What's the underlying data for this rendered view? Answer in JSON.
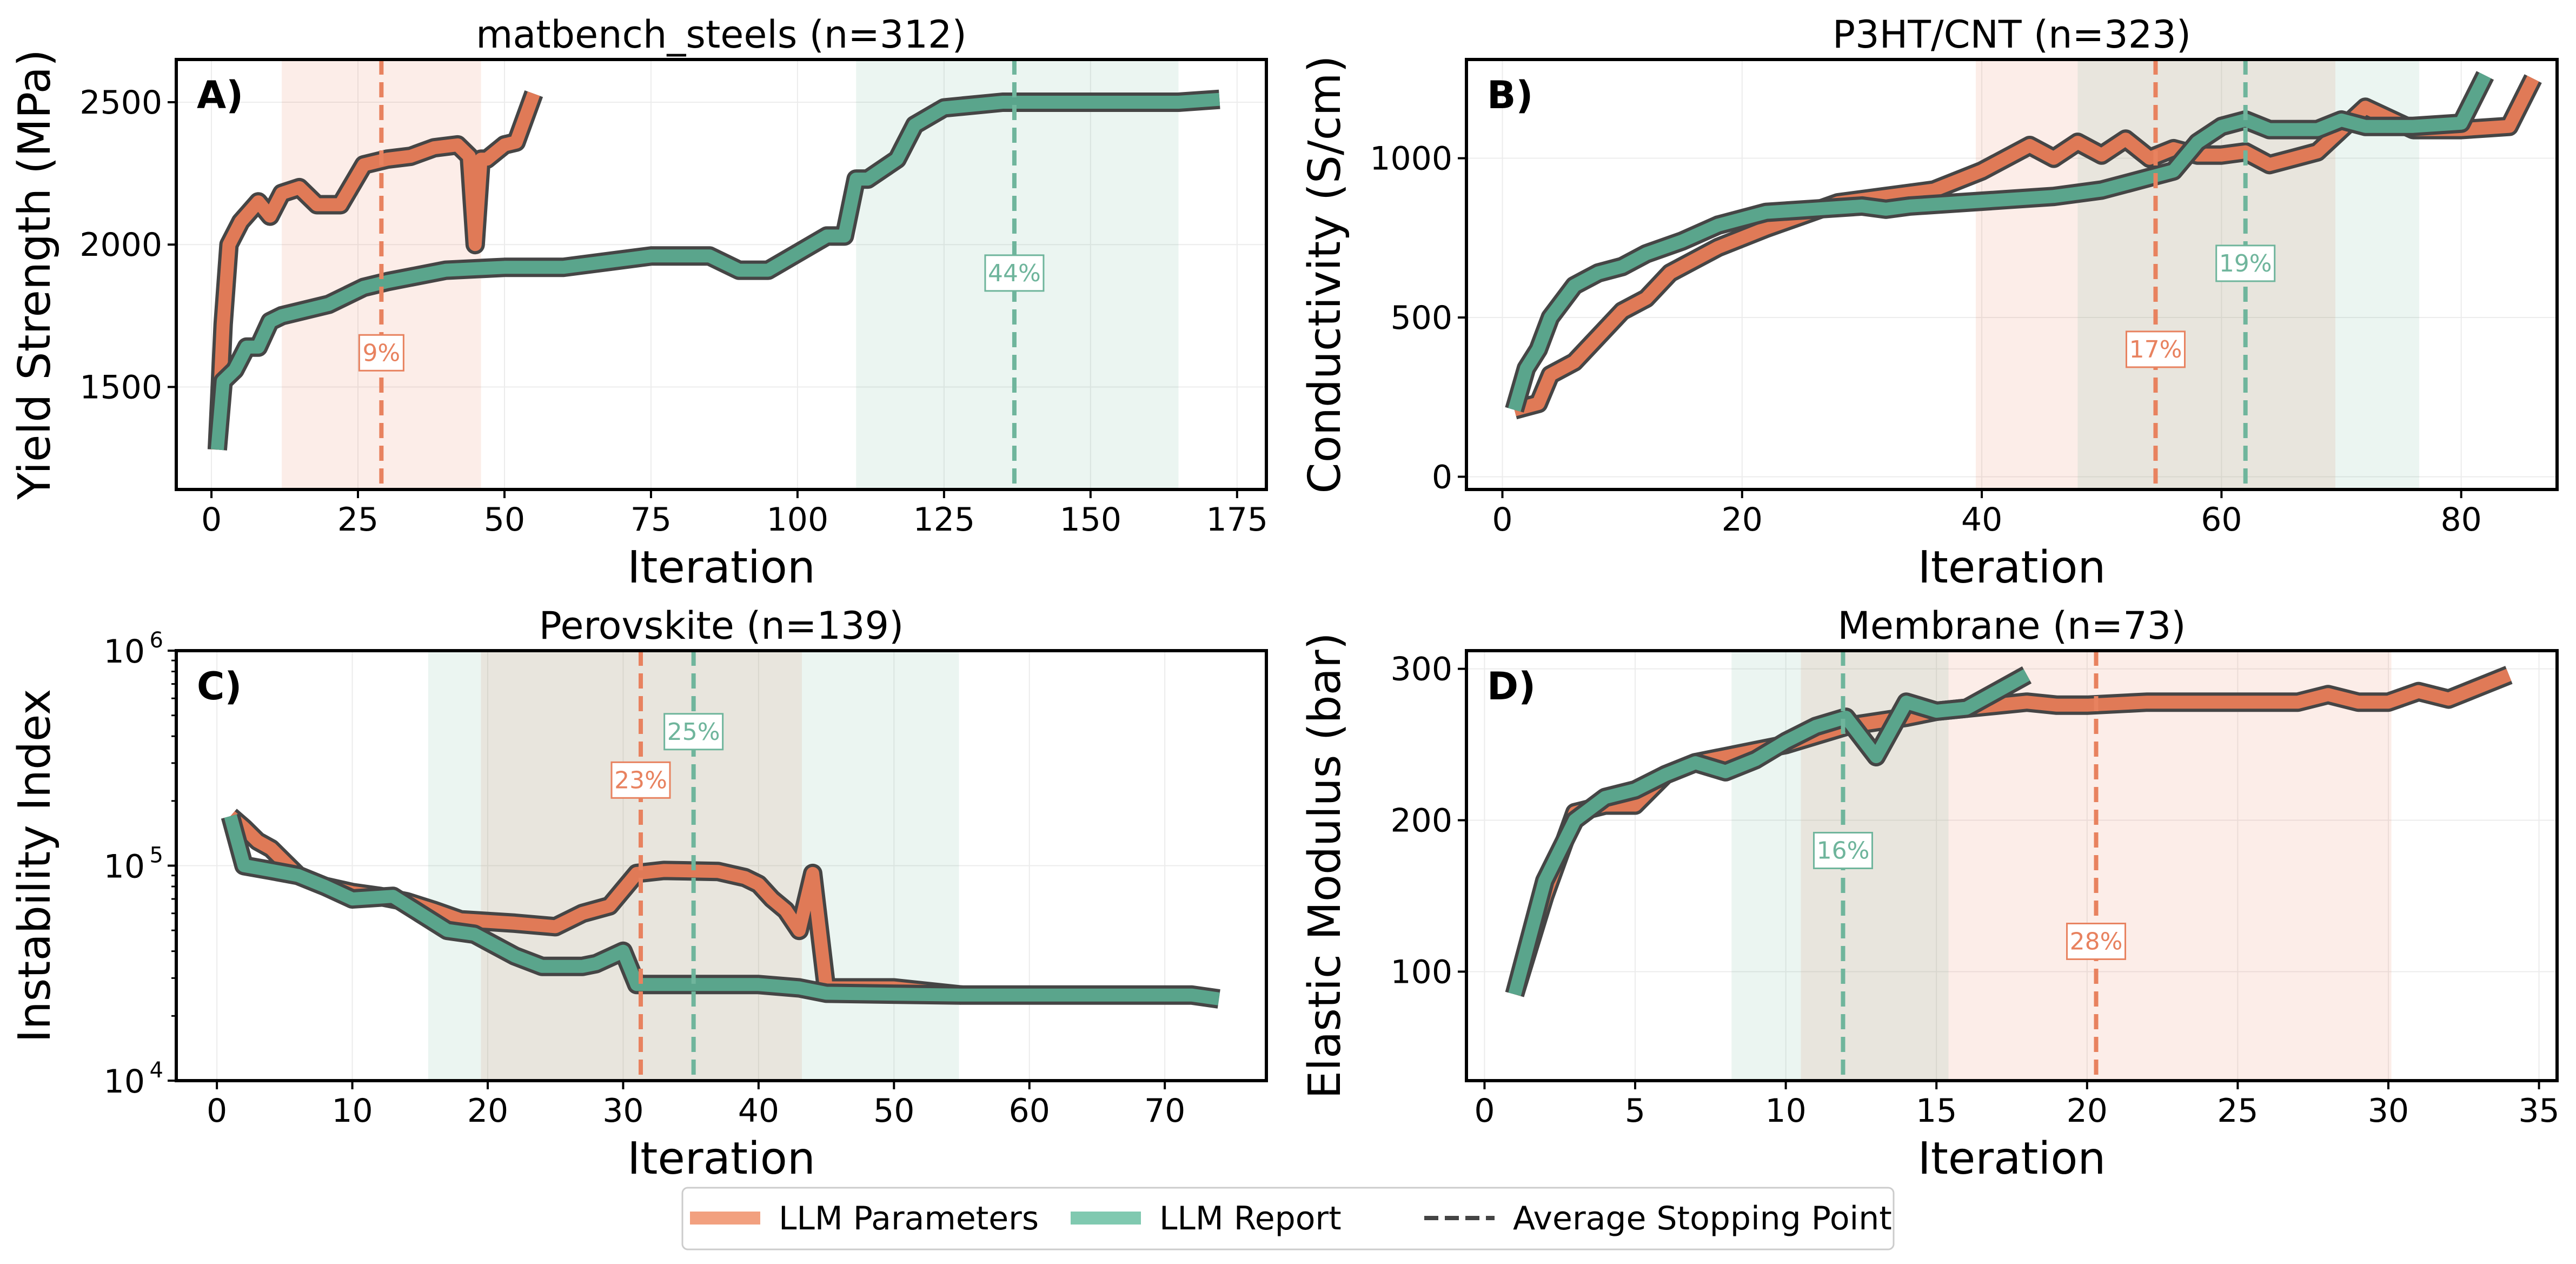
{
  "colors": {
    "llm_parameters": "#e8825f",
    "llm_parameters_dark": "#e07a57",
    "llm_report": "#6fb59c",
    "llm_report_dark": "#5aa58c",
    "outline": "#454545",
    "axis": "#000000",
    "grid": "#ececec"
  },
  "legend": {
    "items": [
      {
        "label": "LLM Parameters",
        "style": "line",
        "color": "#f2a07f"
      },
      {
        "label": "LLM Report",
        "style": "line",
        "color": "#80c9b0"
      },
      {
        "label": "Average Stopping Point",
        "style": "dashed",
        "color": "#444444"
      }
    ]
  },
  "chart_data": [
    {
      "panel": "A)",
      "type": "line",
      "title": "matbench_steels (n=312)",
      "xlabel": "Iteration",
      "ylabel": "Yield Strength (MPa)",
      "yscale": "linear",
      "xlim": [
        -6,
        180
      ],
      "ylim": [
        1140,
        2650
      ],
      "xticks": [
        0,
        25,
        50,
        75,
        100,
        125,
        150,
        175
      ],
      "xtick_labels": [
        "0",
        "25",
        "50",
        "75",
        "100",
        "125",
        "150",
        "175"
      ],
      "yticks": [
        1500,
        2000,
        2500
      ],
      "ytick_labels": [
        "1500",
        "2000",
        "2500"
      ],
      "series": [
        {
          "name": "LLM Parameters",
          "x": [
            1,
            2,
            3,
            5,
            8,
            10,
            12,
            15,
            18,
            22,
            26,
            30,
            34,
            38,
            42,
            44,
            45,
            46,
            47,
            50,
            52,
            55
          ],
          "y": [
            1280,
            1720,
            2000,
            2080,
            2150,
            2100,
            2180,
            2200,
            2140,
            2140,
            2280,
            2300,
            2310,
            2340,
            2350,
            2310,
            2000,
            2300,
            2300,
            2350,
            2360,
            2530
          ]
        },
        {
          "name": "LLM Report",
          "x": [
            1,
            2,
            4,
            6,
            8,
            10,
            12,
            16,
            20,
            26,
            30,
            40,
            50,
            60,
            75,
            85,
            90,
            95,
            100,
            105,
            108,
            110,
            112,
            117,
            120,
            125,
            135,
            150,
            165,
            172
          ],
          "y": [
            1280,
            1520,
            1560,
            1640,
            1640,
            1730,
            1750,
            1770,
            1790,
            1850,
            1870,
            1910,
            1920,
            1920,
            1960,
            1960,
            1910,
            1910,
            1970,
            2030,
            2030,
            2230,
            2230,
            2300,
            2420,
            2480,
            2500,
            2500,
            2500,
            2510
          ]
        }
      ],
      "stopping_points": [
        {
          "name": "LLM Parameters",
          "x": 29,
          "band": [
            12,
            46
          ],
          "percent": "9%",
          "label_y": 1620
        },
        {
          "name": "LLM Report",
          "x": 137,
          "band": [
            110,
            165
          ],
          "percent": "44%",
          "label_y": 1900
        }
      ]
    },
    {
      "panel": "B)",
      "type": "line",
      "title": "P3HT/CNT (n=323)",
      "xlabel": "Iteration",
      "ylabel": "Conductivity (S/cm)",
      "yscale": "linear",
      "xlim": [
        -3,
        88
      ],
      "ylim": [
        -40,
        1310
      ],
      "xticks": [
        0,
        20,
        40,
        60,
        80
      ],
      "xtick_labels": [
        "0",
        "20",
        "40",
        "60",
        "80"
      ],
      "yticks": [
        0,
        500,
        1000
      ],
      "ytick_labels": [
        "0",
        "500",
        "1000"
      ],
      "series": [
        {
          "name": "LLM Parameters",
          "x": [
            1,
            2,
            3,
            4,
            6,
            8,
            10,
            12,
            14,
            16,
            18,
            20,
            22,
            25,
            28,
            32,
            36,
            40,
            44,
            46,
            48,
            50,
            52,
            54,
            56,
            58,
            60,
            62,
            64,
            66,
            68,
            70,
            72,
            76,
            80,
            84,
            86
          ],
          "y": [
            210,
            220,
            230,
            320,
            360,
            440,
            520,
            560,
            640,
            680,
            720,
            750,
            780,
            820,
            860,
            880,
            900,
            960,
            1040,
            1000,
            1050,
            1010,
            1060,
            1000,
            1030,
            1010,
            1010,
            1020,
            980,
            1000,
            1020,
            1090,
            1160,
            1090,
            1090,
            1100,
            1250
          ]
        },
        {
          "name": "LLM Report",
          "x": [
            1,
            2,
            3,
            4,
            6,
            8,
            10,
            12,
            15,
            18,
            22,
            26,
            30,
            32,
            34,
            38,
            42,
            46,
            50,
            54,
            56,
            58,
            60,
            62,
            64,
            66,
            68,
            70,
            72,
            76,
            80,
            82
          ],
          "y": [
            210,
            340,
            400,
            500,
            600,
            640,
            660,
            700,
            740,
            790,
            830,
            840,
            850,
            840,
            850,
            860,
            870,
            880,
            900,
            940,
            960,
            1050,
            1100,
            1120,
            1090,
            1090,
            1090,
            1120,
            1100,
            1100,
            1110,
            1260
          ]
        }
      ],
      "stopping_points": [
        {
          "name": "LLM Parameters",
          "x": 54.5,
          "band": [
            39.5,
            69.5
          ],
          "percent": "17%",
          "label_y": 400
        },
        {
          "name": "LLM Report",
          "x": 62,
          "band": [
            48,
            76.5
          ],
          "percent": "19%",
          "label_y": 670
        }
      ]
    },
    {
      "panel": "C)",
      "type": "line",
      "title": "Perovskite (n=139)",
      "xlabel": "Iteration",
      "ylabel": "Instability Index",
      "yscale": "log",
      "xlim": [
        -3,
        77.5
      ],
      "ylim": [
        10000,
        1000000
      ],
      "xticks": [
        0,
        10,
        20,
        30,
        40,
        50,
        60,
        70
      ],
      "xtick_labels": [
        "0",
        "10",
        "20",
        "30",
        "40",
        "50",
        "60",
        "70"
      ],
      "yticks": [
        10000,
        100000,
        1000000
      ],
      "ytick_labels": [
        "10",
        "10",
        "10"
      ],
      "ytick_exponents": [
        "4",
        "5",
        "6"
      ],
      "series": [
        {
          "name": "LLM Parameters",
          "x": [
            1,
            2,
            3,
            4,
            6,
            8,
            10,
            12,
            14,
            16,
            18,
            20,
            22,
            25,
            27,
            29,
            31,
            33,
            37,
            39,
            40,
            41,
            42,
            43,
            44,
            45,
            46,
            50,
            55
          ],
          "y": [
            170000,
            150000,
            130000,
            120000,
            90000,
            80000,
            75000,
            72000,
            68000,
            62000,
            56000,
            55000,
            54000,
            52000,
            60000,
            65000,
            92000,
            95000,
            94000,
            88000,
            82000,
            70000,
            62000,
            50000,
            92000,
            27000,
            27000,
            27000,
            25000
          ]
        },
        {
          "name": "LLM Report",
          "x": [
            1,
            2,
            4,
            6,
            8,
            10,
            13,
            15,
            17,
            19,
            22,
            24,
            27,
            28,
            30,
            31,
            33,
            37,
            40,
            43,
            45,
            55,
            65,
            72,
            74
          ],
          "y": [
            170000,
            100000,
            95000,
            90000,
            80000,
            70000,
            72000,
            60000,
            50000,
            48000,
            38000,
            34000,
            34000,
            35000,
            40000,
            28000,
            28000,
            28000,
            28000,
            27000,
            25500,
            25000,
            25000,
            25000,
            24000
          ]
        }
      ],
      "stopping_points": [
        {
          "name": "LLM Parameters",
          "x": 31.3,
          "band": [
            19.5,
            43.2
          ],
          "percent": "23%",
          "label_y": 250000
        },
        {
          "name": "LLM Report",
          "x": 35.2,
          "band": [
            15.6,
            54.8
          ],
          "percent": "25%",
          "label_y": 420000
        }
      ]
    },
    {
      "panel": "D)",
      "type": "line",
      "title": "Membrane (n=73)",
      "xlabel": "Iteration",
      "ylabel": "Elastic Modulus (bar)",
      "yscale": "linear",
      "xlim": [
        -0.6,
        35.6
      ],
      "ylim": [
        28,
        312
      ],
      "xticks": [
        0,
        5,
        10,
        15,
        20,
        25,
        30,
        35
      ],
      "xtick_labels": [
        "0",
        "5",
        "10",
        "15",
        "20",
        "25",
        "30",
        "35"
      ],
      "yticks": [
        100,
        200,
        300
      ],
      "ytick_labels": [
        "100",
        "200",
        "300"
      ],
      "series": [
        {
          "name": "LLM Parameters",
          "x": [
            1,
            2,
            3,
            4,
            5,
            6,
            7,
            8,
            9,
            10,
            11,
            12,
            13,
            14,
            15,
            16,
            17,
            18,
            19,
            20,
            22,
            25,
            27,
            28,
            29,
            30,
            31,
            32,
            33,
            34
          ],
          "y": [
            85,
            150,
            205,
            210,
            210,
            230,
            238,
            242,
            246,
            250,
            256,
            262,
            265,
            268,
            272,
            274,
            276,
            278,
            276,
            276,
            278,
            278,
            278,
            283,
            278,
            278,
            285,
            280,
            288,
            296
          ]
        },
        {
          "name": "LLM Report",
          "x": [
            1,
            2,
            3,
            4,
            5,
            6,
            7,
            8,
            9,
            10,
            11,
            12,
            13,
            14,
            15,
            16,
            17,
            18
          ],
          "y": [
            85,
            160,
            200,
            215,
            220,
            230,
            238,
            232,
            240,
            252,
            262,
            268,
            242,
            278,
            272,
            274,
            285,
            296
          ]
        }
      ],
      "stopping_points": [
        {
          "name": "LLM Parameters",
          "x": 20.3,
          "band": [
            10.5,
            30.1
          ],
          "percent": "28%",
          "label_y": 120
        },
        {
          "name": "LLM Report",
          "x": 11.9,
          "band": [
            8.2,
            15.4
          ],
          "percent": "16%",
          "label_y": 180
        }
      ]
    }
  ]
}
